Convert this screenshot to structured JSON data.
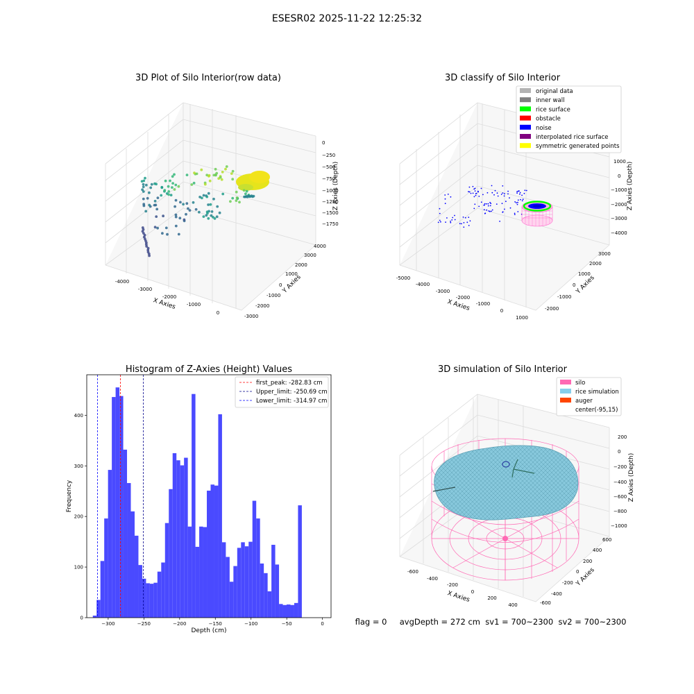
{
  "figure": {
    "suptitle": "ESESR02 2025-11-22 12:25:32",
    "status_line": "flag = 0     avgDepth = 272 cm  sv1 = 700~2300  sv2 = 700~2300"
  },
  "panels": {
    "raw": {
      "title": "3D Plot of Silo Interior(row data)",
      "xlabel": "X Axies",
      "ylabel": "Y Axies",
      "zlabel": "Z Axies (Depth)",
      "xticks": [
        "-4000",
        "-3000",
        "-2000",
        "-1000",
        "0"
      ],
      "yticks": [
        "-3000",
        "-2000",
        "-1000",
        "0",
        "1000",
        "2000",
        "3000",
        "4000"
      ],
      "zticks": [
        "0",
        "−250",
        "−500",
        "−750",
        "−1000",
        "−1250",
        "−1500",
        "−1750"
      ],
      "colormap": "viridis"
    },
    "classify": {
      "title": "3D classify of Silo Interior",
      "xlabel": "X Axies",
      "ylabel": "Y Axies",
      "zlabel": "Z Axies (Depth)",
      "xticks": [
        "-5000",
        "-4000",
        "-3000",
        "-2000",
        "-1000",
        "0",
        "1000"
      ],
      "yticks": [
        "-2000",
        "-1000",
        "0",
        "1000",
        "2000",
        "3000"
      ],
      "zticks": [
        "1000",
        "0",
        "−1000",
        "−2000",
        "−3000",
        "−4000"
      ],
      "legend_position": "top-right",
      "legend": [
        {
          "label": "original data",
          "color": "#b3b3b3"
        },
        {
          "label": "inner wall",
          "color": "#808080"
        },
        {
          "label": "rice surface",
          "color": "#00ff00"
        },
        {
          "label": "obstacle",
          "color": "#ff0000"
        },
        {
          "label": "noise",
          "color": "#0000ff"
        },
        {
          "label": "interpolated rice surface",
          "color": "#800080"
        },
        {
          "label": "symmetric generated points",
          "color": "#ffff00"
        }
      ]
    },
    "simulation": {
      "title": "3D simulation of Silo Interior",
      "xlabel": "X Axies",
      "ylabel": "Y Axies",
      "zlabel": "Z Axies (Depth)",
      "xticks": [
        "-600",
        "-400",
        "-200",
        "0",
        "200",
        "400"
      ],
      "yticks": [
        "-600",
        "-400",
        "-200",
        "0",
        "200",
        "400",
        "600"
      ],
      "zticks": [
        "200",
        "0",
        "−200",
        "−400",
        "−600",
        "−800",
        "−1000"
      ],
      "legend_position": "top-right",
      "legend": [
        {
          "label": "silo",
          "color": "#ff69b4"
        },
        {
          "label": "rice simulation",
          "color": "#87ceeb"
        },
        {
          "label": "auger",
          "color": "#ff4500"
        },
        {
          "label": "center(-95,15)",
          "color": ""
        }
      ]
    }
  },
  "chart_data": [
    {
      "type": "scatter",
      "panel": "raw",
      "title": "3D Plot of Silo Interior(row data)",
      "xlabel": "X Axies",
      "ylabel": "Y Axies",
      "zlabel": "Z Axies (Depth)",
      "xlim": [
        -4500,
        500
      ],
      "ylim": [
        -3000,
        4000
      ],
      "zlim": [
        -1900,
        100
      ],
      "colormap": "viridis"
    },
    {
      "type": "scatter",
      "panel": "classify",
      "title": "3D classify of Silo Interior",
      "xlabel": "X Axies",
      "ylabel": "Y Axies",
      "zlabel": "Z Axies (Depth)",
      "xlim": [
        -5000,
        1000
      ],
      "ylim": [
        -2500,
        3500
      ],
      "zlim": [
        -4000,
        1500
      ],
      "legend_position": "top-right",
      "series": [
        {
          "name": "original data",
          "color": "#b3b3b3"
        },
        {
          "name": "inner wall",
          "color": "#808080"
        },
        {
          "name": "rice surface",
          "color": "#00ff00"
        },
        {
          "name": "obstacle",
          "color": "#ff0000"
        },
        {
          "name": "noise",
          "color": "#0000ff"
        },
        {
          "name": "interpolated rice surface",
          "color": "#800080"
        },
        {
          "name": "symmetric generated points",
          "color": "#ffff00"
        }
      ]
    },
    {
      "type": "bar",
      "panel": "histogram",
      "title": "Histogram of Z-Axies (Height) Values",
      "xlabel": "Depth (cm)",
      "ylabel": "Frequency",
      "xlim": [
        -330,
        12
      ],
      "ylim": [
        0,
        480
      ],
      "grid": false,
      "legend_position": "top-right",
      "bar_color": "#4a4aff",
      "bin_start": -321.5,
      "bin_width": 5.32,
      "xticks": [
        -300,
        -250,
        -200,
        -150,
        -100,
        -50,
        0
      ],
      "yticks": [
        0,
        100,
        200,
        300,
        400
      ],
      "values": [
        4,
        35,
        112,
        196,
        292,
        436,
        455,
        438,
        332,
        266,
        210,
        162,
        104,
        77,
        68,
        67,
        69,
        91,
        109,
        187,
        254,
        325,
        311,
        301,
        316,
        180,
        442,
        140,
        180,
        179,
        251,
        263,
        261,
        402,
        149,
        120,
        71,
        102,
        138,
        149,
        141,
        150,
        231,
        196,
        107,
        88,
        52,
        144,
        105,
        27,
        25,
        26,
        25,
        29,
        222
      ],
      "reference_lines": [
        {
          "name": "first_peak: -282.83 cm",
          "value": -282.83,
          "color": "#ff0000"
        },
        {
          "name": "Upper_limit: -250.69 cm",
          "value": -250.69,
          "color": "#00008b"
        },
        {
          "name": "Lower_limit: -314.97 cm",
          "value": -314.97,
          "color": "#0000ff"
        }
      ]
    },
    {
      "type": "area",
      "panel": "simulation",
      "title": "3D simulation of Silo Interior",
      "xlabel": "X Axies",
      "ylabel": "Y Axies",
      "zlabel": "Z Axies (Depth)",
      "xlim": [
        -700,
        500
      ],
      "ylim": [
        -600,
        700
      ],
      "zlim": [
        -1050,
        300
      ],
      "center": [
        -95,
        15
      ],
      "avg_depth_cm": 272,
      "legend_position": "top-right",
      "series": [
        {
          "name": "silo",
          "color": "#ff69b4"
        },
        {
          "name": "rice simulation",
          "color": "#87ceeb"
        },
        {
          "name": "auger",
          "color": "#ff4500"
        }
      ]
    }
  ]
}
